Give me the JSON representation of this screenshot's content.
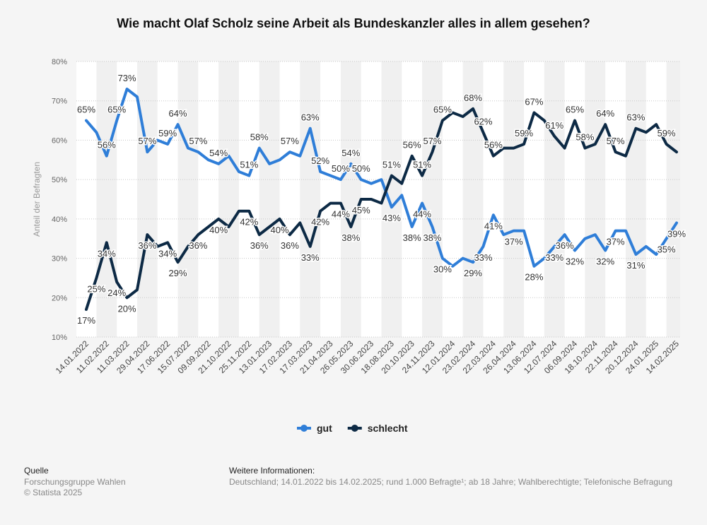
{
  "chart_data": {
    "type": "line",
    "title": "Wie macht Olaf Scholz seine Arbeit als Bundeskanzler alles in allem gesehen?",
    "y_label": "Anteil der Befragten",
    "categories": [
      "14.01.2022",
      null,
      "11.02.2022",
      null,
      "11.03.2022",
      null,
      "29.04.2022",
      null,
      "17.06.2022",
      null,
      "15.07.2022",
      null,
      "09.09.2022",
      null,
      "21.10.2022",
      null,
      "25.11.2022",
      null,
      "13.01.2023",
      null,
      "17.02.2023",
      null,
      "17.03.2023",
      null,
      "21.04.2023",
      null,
      "26.05.2023",
      null,
      "30.06.2023",
      null,
      "18.08.2023",
      null,
      "20.10.2023",
      null,
      "24.11.2023",
      null,
      "12.01.2024",
      null,
      "23.02.2024",
      null,
      "22.03.2024",
      null,
      "26.04.2024",
      null,
      "13.06.2024",
      null,
      "12.07.2024",
      null,
      "06.09.2024",
      null,
      "18.10.2024",
      null,
      "22.11.2024",
      null,
      "20.12.2024",
      null,
      "24.01.2025",
      null,
      "14.02.2025"
    ],
    "series": [
      {
        "name": "gut",
        "color": "#2f7ed8",
        "values": [
          65,
          62,
          56,
          65,
          73,
          71,
          57,
          60,
          59,
          64,
          58,
          57,
          55,
          54,
          56,
          52,
          51,
          58,
          54,
          55,
          57,
          56,
          63,
          52,
          51,
          50,
          54,
          50,
          49,
          50,
          43,
          46,
          38,
          44,
          38,
          30,
          28,
          30,
          29,
          33,
          41,
          36,
          37,
          37,
          28,
          30,
          33,
          36,
          32,
          35,
          36,
          32,
          37,
          37,
          31,
          33,
          31,
          35,
          39
        ],
        "value_labels": [
          "65%",
          null,
          "56%",
          "65%",
          "73%",
          null,
          "57%",
          null,
          "59%",
          "64%",
          null,
          "57%",
          null,
          "54%",
          null,
          null,
          "51%",
          "58%",
          null,
          null,
          "57%",
          null,
          "63%",
          "52%",
          null,
          "50%",
          "54%",
          "50%",
          null,
          null,
          "43%",
          null,
          "38%",
          "44%",
          "38%",
          "30%",
          null,
          null,
          "29%",
          "33%",
          "41%",
          null,
          "37%",
          null,
          "28%",
          null,
          "33%",
          "36%",
          "32%",
          null,
          null,
          "32%",
          "37%",
          null,
          "31%",
          null,
          null,
          "35%",
          "39%"
        ]
      },
      {
        "name": "schlecht",
        "color": "#0d2a45",
        "values": [
          17,
          25,
          34,
          24,
          20,
          22,
          36,
          33,
          34,
          29,
          33,
          36,
          38,
          40,
          38,
          42,
          42,
          36,
          38,
          40,
          36,
          39,
          33,
          42,
          44,
          44,
          38,
          45,
          45,
          44,
          51,
          49,
          56,
          51,
          57,
          65,
          67,
          66,
          68,
          62,
          56,
          58,
          58,
          59,
          67,
          65,
          61,
          58,
          65,
          58,
          59,
          64,
          57,
          56,
          63,
          62,
          64,
          59,
          57
        ],
        "value_labels": [
          "17%",
          "25%",
          "34%",
          "24%",
          "20%",
          null,
          "36%",
          null,
          "34%",
          "29%",
          null,
          "36%",
          null,
          "40%",
          null,
          null,
          "42%",
          "36%",
          null,
          "40%",
          "36%",
          null,
          "33%",
          "42%",
          null,
          "44%",
          "38%",
          "45%",
          null,
          null,
          "51%",
          null,
          "56%",
          "51%",
          "57%",
          "65%",
          null,
          null,
          "68%",
          "62%",
          "56%",
          null,
          null,
          "59%",
          "67%",
          null,
          "61%",
          null,
          "65%",
          "58%",
          null,
          "64%",
          "57%",
          null,
          "63%",
          null,
          null,
          "59%",
          null
        ]
      }
    ],
    "ylim": [
      10,
      80
    ],
    "yticks": [
      {
        "value": 10,
        "label": "10%"
      },
      {
        "value": 20,
        "label": "20%"
      },
      {
        "value": 30,
        "label": "30%"
      },
      {
        "value": 40,
        "label": "40%"
      },
      {
        "value": 50,
        "label": "50%"
      },
      {
        "value": 60,
        "label": "60%"
      },
      {
        "value": 70,
        "label": "70%"
      },
      {
        "value": 80,
        "label": "80%"
      }
    ],
    "grid": true,
    "legend": "bottom"
  },
  "footer": {
    "source_title": "Quelle",
    "source": "Forschungsgruppe Wahlen",
    "copyright": "© Statista 2025",
    "info_title": "Weitere Informationen:",
    "info": "Deutschland; 14.01.2022 bis 14.02.2025; rund 1.000 Befragte¹; ab 18 Jahre; Wahlberechtigte; Telefonische Befragung"
  }
}
